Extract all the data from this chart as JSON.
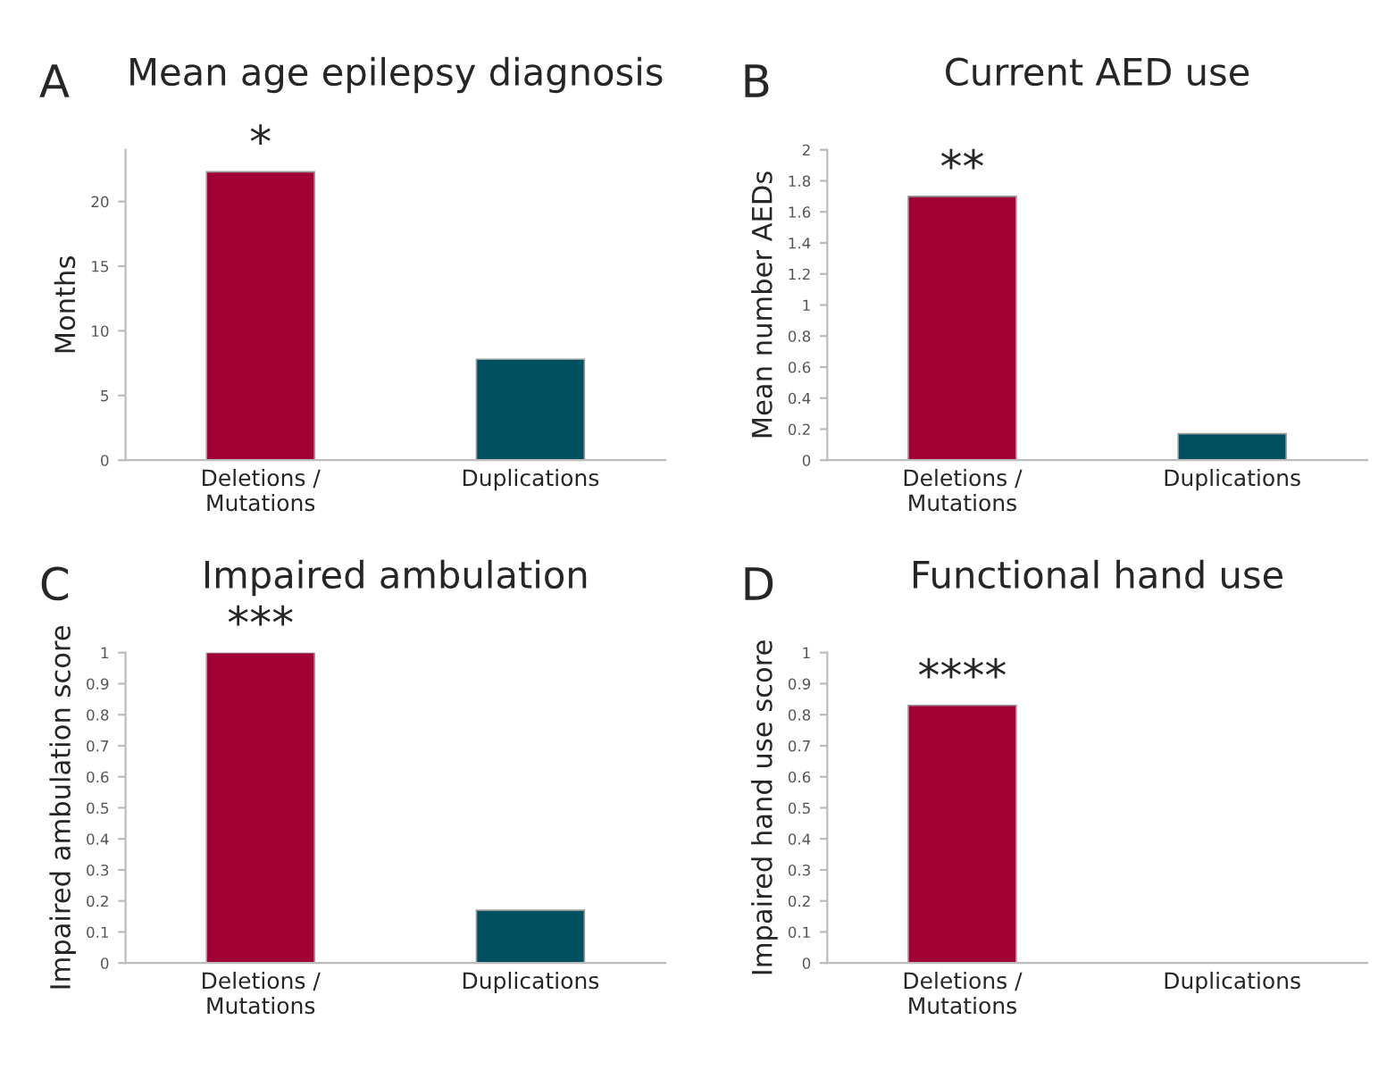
{
  "chart_data": [
    {
      "type": "bar",
      "title": "Mean age epilepsy diagnosis",
      "ylabel": "Months",
      "categories": [
        "Deletions /\nMutations",
        "Duplications"
      ],
      "values": [
        22.3,
        7.8
      ],
      "colors": [
        "#a10035",
        "#005060"
      ],
      "ylim": [
        0,
        24
      ],
      "yticks": [
        0,
        5,
        10,
        15,
        20
      ],
      "grid": false,
      "annotations": [
        "A",
        {
          "text": "*",
          "x": "Deletions /\nMutations",
          "y": 22.3
        }
      ]
    },
    {
      "type": "bar",
      "title": "Current AED use",
      "ylabel": "Mean number AEDs",
      "categories": [
        "Deletions /\nMutations",
        "Duplications"
      ],
      "values": [
        1.7,
        0.17
      ],
      "colors": [
        "#a10035",
        "#005060"
      ],
      "ylim": [
        0,
        2
      ],
      "yticks": [
        0,
        0.2,
        0.4,
        0.6,
        0.8,
        1,
        1.2,
        1.4,
        1.6,
        1.8,
        2
      ],
      "grid": false,
      "annotations": [
        "B",
        {
          "text": "**",
          "x": "Deletions /\nMutations",
          "y": 1.7
        }
      ]
    },
    {
      "type": "bar",
      "title": "Impaired ambulation",
      "ylabel": "Impaired ambulation score",
      "categories": [
        "Deletions /\nMutations",
        "Duplications"
      ],
      "values": [
        1,
        0.17
      ],
      "colors": [
        "#a10035",
        "#005060"
      ],
      "ylim": [
        0,
        1
      ],
      "yticks": [
        0,
        0.1,
        0.2,
        0.3,
        0.4,
        0.5,
        0.6,
        0.7,
        0.8,
        0.9,
        1
      ],
      "grid": false,
      "annotations": [
        "C",
        {
          "text": "***",
          "x": "Deletions /\nMutations",
          "y": 1
        }
      ]
    },
    {
      "type": "bar",
      "title": "Functional hand use",
      "ylabel": "Impaired hand use score",
      "categories": [
        "Deletions /\nMutations",
        "Duplications"
      ],
      "values": [
        0.83,
        0
      ],
      "colors": [
        "#a10035",
        "#005060"
      ],
      "ylim": [
        0,
        1
      ],
      "yticks": [
        0,
        0.1,
        0.2,
        0.3,
        0.4,
        0.5,
        0.6,
        0.7,
        0.8,
        0.9,
        1
      ],
      "grid": false,
      "annotations": [
        "D",
        {
          "text": "****",
          "x": "Deletions /\nMutations",
          "y": 0.83
        }
      ]
    }
  ]
}
